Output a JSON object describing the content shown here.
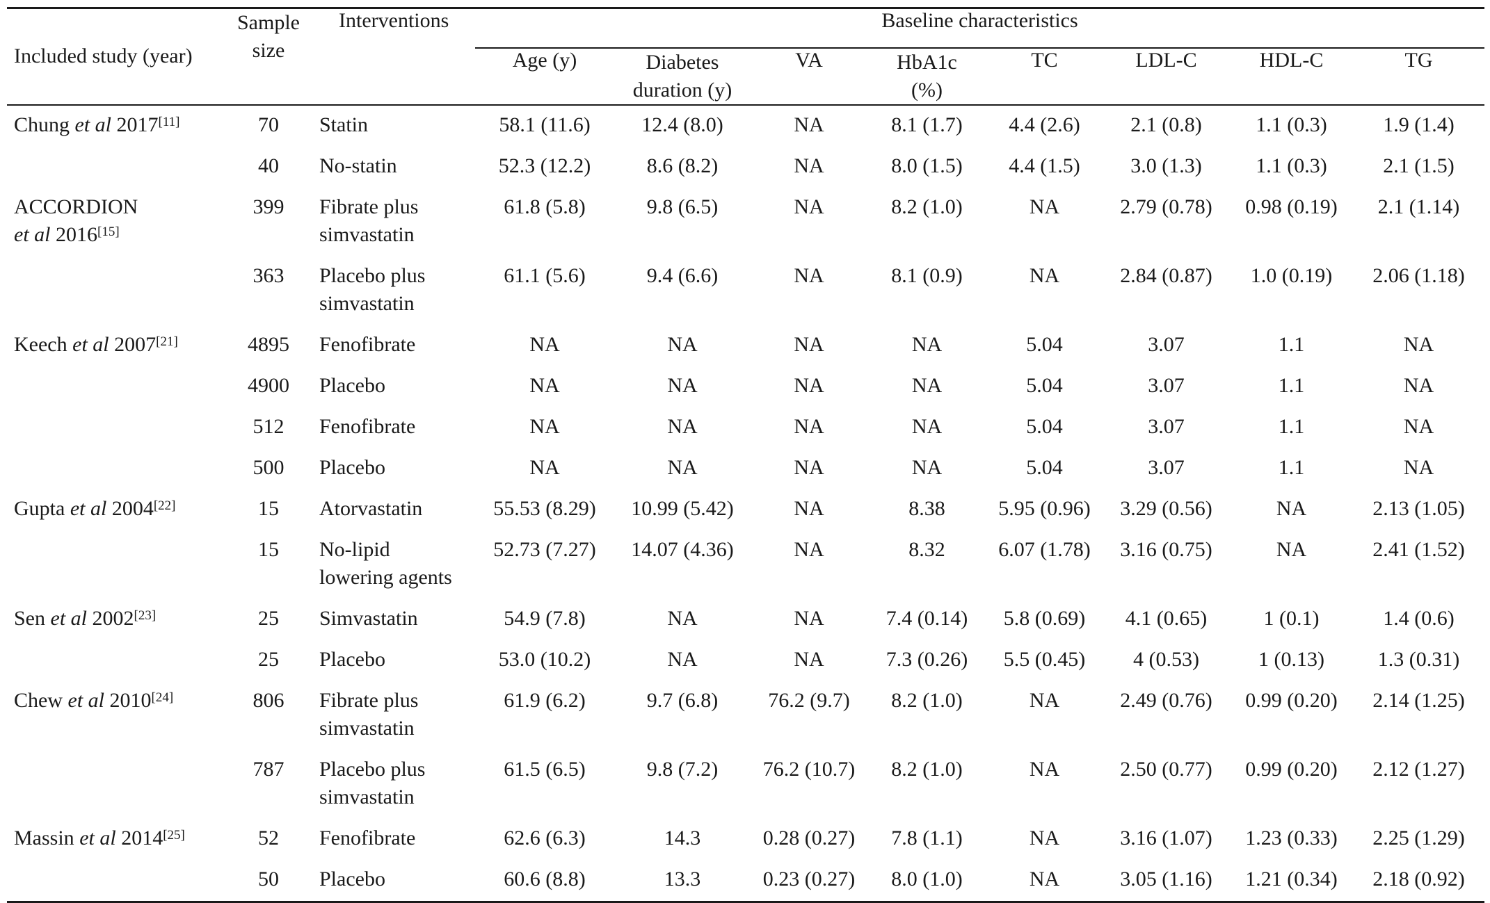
{
  "table": {
    "headers": {
      "study": "Included study (year)",
      "sample_size_line1": "Sample",
      "sample_size_line2": "size",
      "interventions": "Interventions",
      "baseline": "Baseline characteristics",
      "age": "Age (y)",
      "diabetes_line1": "Diabetes",
      "diabetes_line2": "duration (y)",
      "va": "VA",
      "hba1c_line1": "HbA1c",
      "hba1c_line2": "(%)",
      "tc": "TC",
      "ldl": "LDL-C",
      "hdl": "HDL-C",
      "tg": "TG"
    },
    "studies": [
      {
        "name_a": "Chung ",
        "name_i": "et al",
        "name_b": " 2017",
        "ref": "[11]",
        "line2_pre": "",
        "line2_i": "",
        "line2_post": "",
        "line2_ref": ""
      },
      {
        "name_a": "ACCORDION",
        "name_i": "",
        "name_b": "",
        "ref": "",
        "line2_pre": "",
        "line2_i": "et al",
        "line2_post": " 2016",
        "line2_ref": "[15]"
      },
      {
        "name_a": "Keech ",
        "name_i": "et al",
        "name_b": " 2007",
        "ref": "[21]",
        "line2_pre": "",
        "line2_i": "",
        "line2_post": "",
        "line2_ref": ""
      },
      {
        "name_a": "Gupta ",
        "name_i": "et al",
        "name_b": " 2004",
        "ref": "[22]",
        "line2_pre": "",
        "line2_i": "",
        "line2_post": "",
        "line2_ref": ""
      },
      {
        "name_a": "Sen ",
        "name_i": "et al",
        "name_b": " 2002",
        "ref": "[23]",
        "line2_pre": "",
        "line2_i": "",
        "line2_post": "",
        "line2_ref": ""
      },
      {
        "name_a": "Chew ",
        "name_i": "et al",
        "name_b": " 2010",
        "ref": "[24]",
        "line2_pre": "",
        "line2_i": "",
        "line2_post": "",
        "line2_ref": ""
      },
      {
        "name_a": "Massin ",
        "name_i": "et al",
        "name_b": " 2014",
        "ref": "[25]",
        "line2_pre": "",
        "line2_i": "",
        "line2_post": "",
        "line2_ref": ""
      }
    ],
    "rows": [
      {
        "study": 0,
        "n": "70",
        "int1": "Statin",
        "int2": "",
        "age": "58.1 (11.6)",
        "dd": "12.4 (8.0)",
        "va": "NA",
        "hba1c": "8.1 (1.7)",
        "tc": "4.4 (2.6)",
        "ldl": "2.1 (0.8)",
        "hdl": "1.1 (0.3)",
        "tg": "1.9 (1.4)"
      },
      {
        "study": -1,
        "n": "40",
        "int1": "No-statin",
        "int2": "",
        "age": "52.3 (12.2)",
        "dd": "8.6 (8.2)",
        "va": "NA",
        "hba1c": "8.0 (1.5)",
        "tc": "4.4 (1.5)",
        "ldl": "3.0 (1.3)",
        "hdl": "1.1 (0.3)",
        "tg": "2.1 (1.5)"
      },
      {
        "study": 1,
        "n": "399",
        "int1": "Fibrate plus",
        "int2": "simvastatin",
        "age": "61.8 (5.8)",
        "dd": "9.8 (6.5)",
        "va": "NA",
        "hba1c": "8.2 (1.0)",
        "tc": "NA",
        "ldl": "2.79 (0.78)",
        "hdl": "0.98 (0.19)",
        "tg": "2.1 (1.14)"
      },
      {
        "study": -1,
        "n": "363",
        "int1": "Placebo plus",
        "int2": "simvastatin",
        "age": "61.1 (5.6)",
        "dd": "9.4 (6.6)",
        "va": "NA",
        "hba1c": "8.1 (0.9)",
        "tc": "NA",
        "ldl": "2.84 (0.87)",
        "hdl": "1.0 (0.19)",
        "tg": "2.06 (1.18)"
      },
      {
        "study": 2,
        "n": "4895",
        "int1": "Fenofibrate",
        "int2": "",
        "age": "NA",
        "dd": "NA",
        "va": "NA",
        "hba1c": "NA",
        "tc": "5.04",
        "ldl": "3.07",
        "hdl": "1.1",
        "tg": "NA"
      },
      {
        "study": -1,
        "n": "4900",
        "int1": "Placebo",
        "int2": "",
        "age": "NA",
        "dd": "NA",
        "va": "NA",
        "hba1c": "NA",
        "tc": "5.04",
        "ldl": "3.07",
        "hdl": "1.1",
        "tg": "NA"
      },
      {
        "study": -1,
        "n": "512",
        "int1": "Fenofibrate",
        "int2": "",
        "age": "NA",
        "dd": "NA",
        "va": "NA",
        "hba1c": "NA",
        "tc": "5.04",
        "ldl": "3.07",
        "hdl": "1.1",
        "tg": "NA"
      },
      {
        "study": -1,
        "n": "500",
        "int1": "Placebo",
        "int2": "",
        "age": "NA",
        "dd": "NA",
        "va": "NA",
        "hba1c": "NA",
        "tc": "5.04",
        "ldl": "3.07",
        "hdl": "1.1",
        "tg": "NA"
      },
      {
        "study": 3,
        "n": "15",
        "int1": "Atorvastatin",
        "int2": "",
        "age": "55.53 (8.29)",
        "dd": "10.99 (5.42)",
        "va": "NA",
        "hba1c": "8.38",
        "tc": "5.95 (0.96)",
        "ldl": "3.29 (0.56)",
        "hdl": "NA",
        "tg": "2.13 (1.05)"
      },
      {
        "study": -1,
        "n": "15",
        "int1": "No-lipid",
        "int2": "lowering agents",
        "age": "52.73 (7.27)",
        "dd": "14.07 (4.36)",
        "va": "NA",
        "hba1c": "8.32",
        "tc": "6.07 (1.78)",
        "ldl": "3.16 (0.75)",
        "hdl": "NA",
        "tg": "2.41 (1.52)"
      },
      {
        "study": 4,
        "n": "25",
        "int1": "Simvastatin",
        "int2": "",
        "age": "54.9 (7.8)",
        "dd": "NA",
        "va": "NA",
        "hba1c": "7.4 (0.14)",
        "tc": "5.8 (0.69)",
        "ldl": "4.1 (0.65)",
        "hdl": "1 (0.1)",
        "tg": "1.4 (0.6)"
      },
      {
        "study": -1,
        "n": "25",
        "int1": "Placebo",
        "int2": "",
        "age": "53.0 (10.2)",
        "dd": "NA",
        "va": "NA",
        "hba1c": "7.3 (0.26)",
        "tc": "5.5 (0.45)",
        "ldl": "4 (0.53)",
        "hdl": "1 (0.13)",
        "tg": "1.3 (0.31)"
      },
      {
        "study": 5,
        "n": "806",
        "int1": "Fibrate plus",
        "int2": "simvastatin",
        "age": "61.9 (6.2)",
        "dd": "9.7 (6.8)",
        "va": "76.2 (9.7)",
        "hba1c": "8.2 (1.0)",
        "tc": "NA",
        "ldl": "2.49 (0.76)",
        "hdl": "0.99 (0.20)",
        "tg": "2.14 (1.25)"
      },
      {
        "study": -1,
        "n": "787",
        "int1": "Placebo plus",
        "int2": "simvastatin",
        "age": "61.5 (6.5)",
        "dd": "9.8 (7.2)",
        "va": "76.2 (10.7)",
        "hba1c": "8.2 (1.0)",
        "tc": "NA",
        "ldl": "2.50 (0.77)",
        "hdl": "0.99 (0.20)",
        "tg": "2.12 (1.27)"
      },
      {
        "study": 6,
        "n": "52",
        "int1": "Fenofibrate",
        "int2": "",
        "age": "62.6 (6.3)",
        "dd": "14.3",
        "va": "0.28 (0.27)",
        "hba1c": "7.8 (1.1)",
        "tc": "NA",
        "ldl": "3.16 (1.07)",
        "hdl": "1.23 (0.33)",
        "tg": "2.25 (1.29)"
      },
      {
        "study": -1,
        "n": "50",
        "int1": "Placebo",
        "int2": "",
        "age": "60.6 (8.8)",
        "dd": "13.3",
        "va": "0.23 (0.27)",
        "hba1c": "8.0 (1.0)",
        "tc": "NA",
        "ldl": "3.05 (1.16)",
        "hdl": "1.21 (0.34)",
        "tg": "2.18 (0.92)"
      }
    ]
  }
}
